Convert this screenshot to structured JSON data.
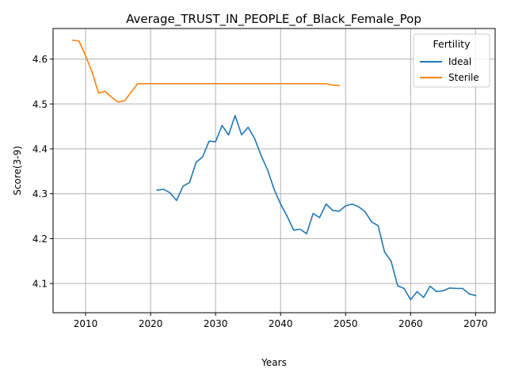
{
  "chart_data": {
    "type": "line",
    "title": "Average_TRUST_IN_PEOPLE_of_Black_Female_Pop",
    "xlabel": "Years",
    "ylabel": "Score(3-9)",
    "xlim": [
      2005,
      2073
    ],
    "ylim": [
      4.035,
      4.668
    ],
    "xticks": [
      2010,
      2020,
      2030,
      2040,
      2050,
      2060,
      2070
    ],
    "yticks": [
      4.1,
      4.2,
      4.3,
      4.4,
      4.5,
      4.6
    ],
    "grid": true,
    "legend": {
      "title": "Fertility",
      "placement": "top-right"
    },
    "series": [
      {
        "name": "Ideal",
        "color": "#1f77b4",
        "x": [
          2021,
          2022,
          2023,
          2024,
          2025,
          2026,
          2027,
          2028,
          2029,
          2030,
          2031,
          2032,
          2033,
          2034,
          2035,
          2036,
          2037,
          2038,
          2039,
          2040,
          2041,
          2042,
          2043,
          2044,
          2045,
          2046,
          2047,
          2048,
          2049,
          2050,
          2051,
          2052,
          2053,
          2054,
          2055,
          2056,
          2057,
          2058,
          2059,
          2060,
          2061,
          2062,
          2063,
          2064,
          2065,
          2066,
          2067,
          2068,
          2069,
          2070
        ],
        "y": [
          4.308,
          4.31,
          4.302,
          4.285,
          4.317,
          4.325,
          4.37,
          4.382,
          4.417,
          4.416,
          4.452,
          4.431,
          4.474,
          4.431,
          4.448,
          4.423,
          4.385,
          4.353,
          4.31,
          4.277,
          4.25,
          4.219,
          4.221,
          4.211,
          4.256,
          4.247,
          4.277,
          4.263,
          4.261,
          4.273,
          4.277,
          4.271,
          4.26,
          4.237,
          4.229,
          4.17,
          4.15,
          4.095,
          4.089,
          4.064,
          4.082,
          4.069,
          4.094,
          4.082,
          4.084,
          4.09,
          4.089,
          4.089,
          4.077,
          4.073
        ]
      },
      {
        "name": "Sterile",
        "color": "#ff7f0e",
        "x": [
          2008,
          2009,
          2010,
          2011,
          2012,
          2013,
          2014,
          2015,
          2016,
          2017,
          2018,
          2019,
          2020,
          2021,
          2022,
          2023,
          2024,
          2025,
          2026,
          2027,
          2028,
          2029,
          2030,
          2031,
          2032,
          2033,
          2034,
          2035,
          2036,
          2037,
          2038,
          2039,
          2040,
          2041,
          2042,
          2043,
          2044,
          2045,
          2046,
          2047,
          2048,
          2049
        ],
        "y": [
          4.642,
          4.64,
          4.607,
          4.571,
          4.524,
          4.528,
          4.515,
          4.504,
          4.507,
          4.526,
          4.545,
          4.545,
          4.545,
          4.545,
          4.545,
          4.545,
          4.545,
          4.545,
          4.545,
          4.545,
          4.545,
          4.545,
          4.545,
          4.545,
          4.545,
          4.545,
          4.545,
          4.545,
          4.545,
          4.545,
          4.545,
          4.545,
          4.545,
          4.545,
          4.545,
          4.545,
          4.545,
          4.545,
          4.545,
          4.545,
          4.542,
          4.541
        ]
      }
    ]
  }
}
